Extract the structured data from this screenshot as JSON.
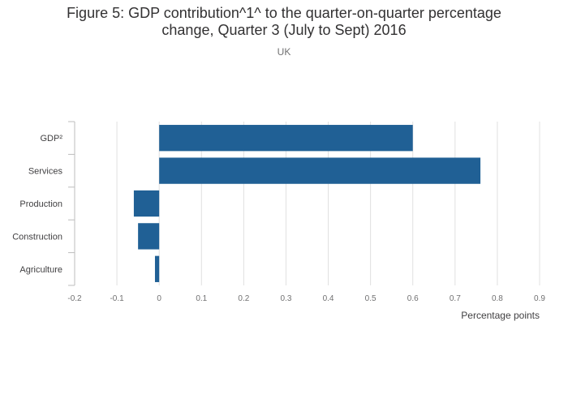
{
  "chart_data": {
    "type": "bar",
    "orientation": "horizontal",
    "title_line1": "Figure 5: GDP contribution^1^ to the quarter-on-quarter percentage",
    "title_line2": "change, Quarter 3 (July to Sept) 2016",
    "subtitle": "UK",
    "xlabel": "Percentage points",
    "ylabel": "",
    "categories": [
      "GDP²",
      "Services",
      "Production",
      "Construction",
      "Agriculture"
    ],
    "values": [
      0.6,
      0.76,
      -0.06,
      -0.05,
      -0.01
    ],
    "xlim": [
      -0.2,
      0.9
    ],
    "xticks": [
      -0.2,
      -0.1,
      0,
      0.1,
      0.2,
      0.3,
      0.4,
      0.5,
      0.6,
      0.7,
      0.8,
      0.9
    ],
    "grid": true,
    "bar_color": "#206095",
    "grid_color": "#e0e0e0"
  }
}
